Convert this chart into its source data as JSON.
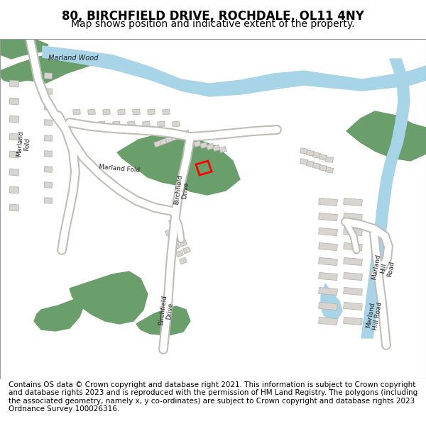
{
  "title": "80, BIRCHFIELD DRIVE, ROCHDALE, OL11 4NY",
  "subtitle": "Map shows position and indicative extent of the property.",
  "footer": "Contains OS data © Crown copyright and database right 2021. This information is subject to Crown copyright and database rights 2023 and is reproduced with the permission of HM Land Registry. The polygons (including the associated geometry, namely x, y co-ordinates) are subject to Crown copyright and database rights 2023 Ordnance Survey 100026316.",
  "bg_color": "#ffffff",
  "map_bg": "#f0eeeb",
  "green_color": "#6a9e6a",
  "water_color": "#a8d4e8",
  "road_color": "#ffffff",
  "road_outline": "#cccccc",
  "building_color": "#d8d5d0",
  "building_outline": "#b0ada8",
  "highlight_color": "#ff0000",
  "title_fontsize": 12,
  "subtitle_fontsize": 10,
  "footer_fontsize": 7.5
}
